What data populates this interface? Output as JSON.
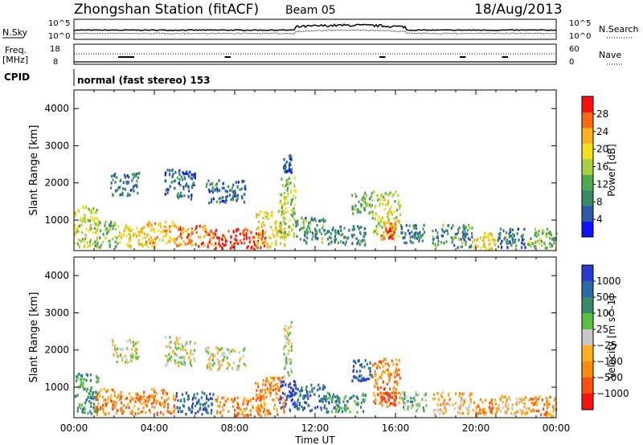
{
  "header": {
    "title": "Zhongshan Station (fitACF)",
    "beam": "Beam 05",
    "date": "18/Aug/2013"
  },
  "top_panels": {
    "nsky_label": "N.Sky",
    "nsearch_label": "N.Search",
    "nsky_tick_top": "10^5",
    "nsky_tick_bottom": "10^0",
    "nsearch_tick_top": "10^5",
    "nsearch_tick_bottom": "10^0",
    "freq_label": "Freq.",
    "freq_unit": "[MHz]",
    "freq_tick_top": "18",
    "freq_tick_bottom": "8",
    "nave_label": "Nave",
    "nave_tick_top": "60",
    "nave_tick_bottom": "0",
    "cpid_label": "CPID",
    "cpid_text": "normal (fast stereo) 153"
  },
  "chart_data": [
    {
      "type": "heatmap",
      "panel": "power",
      "ylabel": "Slant Range [km]",
      "ylim": [
        180,
        4500
      ],
      "yticks": [
        "1000",
        "2000",
        "3000",
        "4000"
      ],
      "ytick_values": [
        1000,
        2000,
        3000,
        4000
      ],
      "xlim": [
        0,
        24
      ],
      "colorbar": {
        "label": "Power [dB]",
        "ticks": [
          "4",
          "8",
          "12",
          "16",
          "20",
          "24",
          "28"
        ],
        "tick_values": [
          4,
          8,
          12,
          16,
          20,
          24,
          28
        ],
        "range": [
          0,
          32
        ],
        "colors": [
          "#1010ff",
          "#2a5aa8",
          "#3a8a6a",
          "#4caa4c",
          "#a8d040",
          "#f5e020",
          "#ffb020",
          "#ff6a10",
          "#ff1010"
        ]
      },
      "regions": [
        {
          "t0": 0.0,
          "t1": 1.2,
          "r0": 300,
          "r1": 1400,
          "level": 18
        },
        {
          "t0": 1.0,
          "t1": 2.2,
          "r0": 300,
          "r1": 1000,
          "level": 14
        },
        {
          "t0": 2.2,
          "t1": 3.4,
          "r0": 300,
          "r1": 900,
          "level": 20
        },
        {
          "t0": 1.8,
          "t1": 3.2,
          "r0": 1700,
          "r1": 2300,
          "level": 8
        },
        {
          "t0": 3.4,
          "t1": 5.0,
          "r0": 300,
          "r1": 1000,
          "level": 22
        },
        {
          "t0": 4.5,
          "t1": 6.0,
          "r0": 1600,
          "r1": 2400,
          "level": 6
        },
        {
          "t0": 5.0,
          "t1": 7.0,
          "r0": 300,
          "r1": 900,
          "level": 26
        },
        {
          "t0": 6.5,
          "t1": 8.5,
          "r0": 1500,
          "r1": 2100,
          "level": 7
        },
        {
          "t0": 7.0,
          "t1": 9.5,
          "r0": 250,
          "r1": 800,
          "level": 30
        },
        {
          "t0": 9.0,
          "t1": 10.5,
          "r0": 300,
          "r1": 1300,
          "level": 20
        },
        {
          "t0": 10.2,
          "t1": 11.0,
          "r0": 600,
          "r1": 2200,
          "level": 16
        },
        {
          "t0": 10.4,
          "t1": 10.8,
          "r0": 2300,
          "r1": 2800,
          "level": 6
        },
        {
          "t0": 11.0,
          "t1": 12.5,
          "r0": 400,
          "r1": 1100,
          "level": 10
        },
        {
          "t0": 12.5,
          "t1": 14.5,
          "r0": 350,
          "r1": 900,
          "level": 9
        },
        {
          "t0": 13.8,
          "t1": 14.8,
          "r0": 1200,
          "r1": 1800,
          "level": 12
        },
        {
          "t0": 14.8,
          "t1": 16.2,
          "r0": 600,
          "r1": 1800,
          "level": 18
        },
        {
          "t0": 15.2,
          "t1": 16.0,
          "r0": 500,
          "r1": 1000,
          "level": 26
        },
        {
          "t0": 16.2,
          "t1": 17.5,
          "r0": 400,
          "r1": 900,
          "level": 8
        },
        {
          "t0": 17.8,
          "t1": 19.8,
          "r0": 300,
          "r1": 900,
          "level": 10
        },
        {
          "t0": 19.8,
          "t1": 21.0,
          "r0": 250,
          "r1": 700,
          "level": 20
        },
        {
          "t0": 21.0,
          "t1": 22.5,
          "r0": 300,
          "r1": 800,
          "level": 7
        },
        {
          "t0": 22.5,
          "t1": 24.0,
          "r0": 250,
          "r1": 800,
          "level": 14
        }
      ]
    },
    {
      "type": "heatmap",
      "panel": "velocity",
      "ylabel": "Slant Range [km]",
      "ylim": [
        180,
        4500
      ],
      "yticks": [
        "1000",
        "2000",
        "3000",
        "4000"
      ],
      "ytick_values": [
        1000,
        2000,
        3000,
        4000
      ],
      "xlim": [
        0,
        24
      ],
      "xticks": [
        "00:00",
        "04:00",
        "08:00",
        "12:00",
        "16:00",
        "20:00",
        "00:00"
      ],
      "xtick_values": [
        0,
        4,
        8,
        12,
        16,
        20,
        24
      ],
      "xlabel": "Time UT",
      "colorbar": {
        "label": "Velocity [m s^-1]",
        "ticks": [
          "1000",
          "500",
          "100",
          "25",
          "−25",
          "−100",
          "−500",
          "−1000"
        ],
        "colors": [
          "#2a3ad0",
          "#2a6aa8",
          "#3a8a6a",
          "#5ac040",
          "#c8c8c8",
          "#ffb020",
          "#ff8a10",
          "#ff5010",
          "#ff1010"
        ]
      },
      "regions": [
        {
          "t0": 0.0,
          "t1": 1.2,
          "r0": 300,
          "r1": 1400,
          "level": 2
        },
        {
          "t0": 1.0,
          "t1": 2.2,
          "r0": 300,
          "r1": 1000,
          "level": 6
        },
        {
          "t0": 2.2,
          "t1": 3.4,
          "r0": 300,
          "r1": 900,
          "level": 6
        },
        {
          "t0": 1.8,
          "t1": 3.2,
          "r0": 1700,
          "r1": 2300,
          "level": 4
        },
        {
          "t0": 3.4,
          "t1": 5.0,
          "r0": 300,
          "r1": 1000,
          "level": 6
        },
        {
          "t0": 4.5,
          "t1": 6.0,
          "r0": 1600,
          "r1": 2400,
          "level": 4
        },
        {
          "t0": 5.0,
          "t1": 7.0,
          "r0": 300,
          "r1": 900,
          "level": 1
        },
        {
          "t0": 6.5,
          "t1": 8.5,
          "r0": 1500,
          "r1": 2100,
          "level": 4
        },
        {
          "t0": 7.0,
          "t1": 9.5,
          "r0": 250,
          "r1": 800,
          "level": 6
        },
        {
          "t0": 9.0,
          "t1": 10.5,
          "r0": 300,
          "r1": 1300,
          "level": 6
        },
        {
          "t0": 10.2,
          "t1": 11.0,
          "r0": 400,
          "r1": 1200,
          "level": 0
        },
        {
          "t0": 10.4,
          "t1": 10.8,
          "r0": 1300,
          "r1": 2800,
          "level": 4
        },
        {
          "t0": 11.0,
          "t1": 12.5,
          "r0": 400,
          "r1": 1100,
          "level": 1
        },
        {
          "t0": 12.5,
          "t1": 14.5,
          "r0": 350,
          "r1": 900,
          "level": 2
        },
        {
          "t0": 13.8,
          "t1": 14.8,
          "r0": 1200,
          "r1": 1800,
          "level": 1
        },
        {
          "t0": 14.8,
          "t1": 16.2,
          "r0": 600,
          "r1": 1800,
          "level": 6
        },
        {
          "t0": 15.2,
          "t1": 16.0,
          "r0": 500,
          "r1": 1000,
          "level": 7
        },
        {
          "t0": 16.2,
          "t1": 17.5,
          "r0": 400,
          "r1": 900,
          "level": 3
        },
        {
          "t0": 17.8,
          "t1": 19.8,
          "r0": 300,
          "r1": 900,
          "level": 5
        },
        {
          "t0": 19.8,
          "t1": 21.0,
          "r0": 250,
          "r1": 700,
          "level": 6
        },
        {
          "t0": 21.0,
          "t1": 22.5,
          "r0": 300,
          "r1": 800,
          "level": 5
        },
        {
          "t0": 22.5,
          "t1": 24.0,
          "r0": 250,
          "r1": 800,
          "level": 6
        }
      ]
    }
  ]
}
